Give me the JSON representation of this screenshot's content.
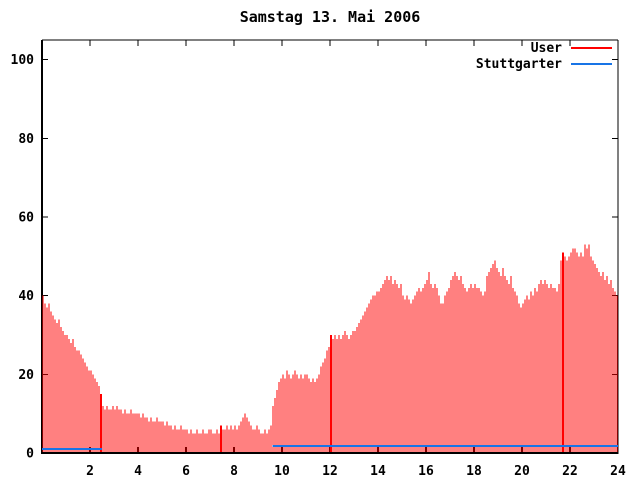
{
  "window": {
    "title": "Samstag 13. Mai 2006"
  },
  "legend": {
    "items": [
      {
        "label": "User",
        "color": "#ff0000"
      },
      {
        "label": "Stuttgarter",
        "color": "#1874e6"
      }
    ]
  },
  "colors": {
    "user_series": "#ff0000",
    "stuttgarter_series": "#1874e6",
    "axis": "#000000",
    "background": "#ffffff",
    "text": "#000000"
  },
  "chart_data": {
    "type": "bar",
    "subtype": "impulses",
    "title": "Samstag 13. Mai 2006",
    "xlabel": "",
    "ylabel": "",
    "xlim": [
      0,
      24
    ],
    "ylim": [
      0,
      105
    ],
    "xticks": [
      2,
      4,
      6,
      8,
      10,
      12,
      14,
      16,
      18,
      20,
      22,
      24
    ],
    "yticks": [
      0,
      20,
      40,
      60,
      80,
      100
    ],
    "grid": false,
    "legend_position": "top-right",
    "sample_interval_hours": 0.08333,
    "series": [
      {
        "name": "User",
        "style": "impulses",
        "color": "#ff0000",
        "thick_sample_indices": [
          29,
          89,
          144,
          260
        ],
        "values": [
          40,
          38,
          37,
          38,
          36,
          35,
          34,
          33,
          34,
          32,
          31,
          30,
          30,
          29,
          28,
          29,
          27,
          26,
          26,
          25,
          24,
          23,
          22,
          21,
          21,
          20,
          19,
          18,
          17,
          15,
          12,
          11,
          12,
          11,
          11,
          12,
          11,
          12,
          11,
          11,
          10,
          11,
          10,
          10,
          11,
          10,
          10,
          10,
          10,
          9,
          10,
          9,
          9,
          8,
          9,
          8,
          8,
          9,
          8,
          8,
          8,
          7,
          8,
          7,
          7,
          6,
          7,
          6,
          6,
          7,
          6,
          6,
          6,
          5,
          6,
          5,
          5,
          6,
          5,
          5,
          6,
          5,
          5,
          6,
          6,
          5,
          5,
          6,
          5,
          7,
          6,
          6,
          7,
          6,
          7,
          6,
          7,
          6,
          7,
          8,
          9,
          10,
          9,
          8,
          7,
          6,
          6,
          7,
          6,
          5,
          5,
          6,
          5,
          6,
          7,
          12,
          14,
          16,
          18,
          19,
          20,
          19,
          21,
          20,
          19,
          20,
          21,
          20,
          19,
          20,
          19,
          20,
          20,
          19,
          18,
          19,
          18,
          19,
          20,
          22,
          23,
          24,
          26,
          27,
          30,
          29,
          30,
          29,
          30,
          29,
          30,
          31,
          30,
          29,
          30,
          31,
          31,
          32,
          33,
          34,
          35,
          36,
          37,
          38,
          39,
          40,
          40,
          41,
          41,
          42,
          43,
          44,
          45,
          44,
          45,
          43,
          44,
          43,
          42,
          43,
          40,
          39,
          40,
          39,
          38,
          39,
          40,
          41,
          42,
          41,
          42,
          43,
          44,
          46,
          43,
          42,
          43,
          42,
          40,
          38,
          38,
          40,
          41,
          42,
          44,
          45,
          46,
          45,
          44,
          45,
          43,
          42,
          41,
          42,
          43,
          42,
          43,
          42,
          42,
          41,
          40,
          41,
          45,
          46,
          47,
          48,
          49,
          47,
          46,
          45,
          47,
          45,
          44,
          43,
          45,
          42,
          41,
          40,
          38,
          37,
          38,
          39,
          40,
          39,
          41,
          40,
          42,
          41,
          43,
          44,
          43,
          44,
          43,
          42,
          43,
          42,
          42,
          41,
          43,
          49,
          51,
          50,
          49,
          50,
          51,
          52,
          52,
          51,
          50,
          51,
          50,
          53,
          52,
          53,
          50,
          49,
          48,
          47,
          46,
          45,
          46,
          44,
          45,
          43,
          44,
          42,
          41,
          40
        ]
      },
      {
        "name": "Stuttgarter",
        "style": "line",
        "color": "#1874e6",
        "segments": [
          {
            "x_start": 0,
            "x_end": 2.5,
            "value": 1.0
          },
          {
            "x_start": 9.6,
            "x_end": 24,
            "value": 1.8
          }
        ]
      }
    ]
  }
}
